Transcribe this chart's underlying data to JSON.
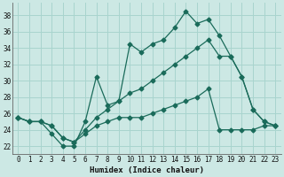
{
  "xlabel": "Humidex (Indice chaleur)",
  "background_color": "#cce8e4",
  "grid_color": "#a8d4ce",
  "line_color": "#1a6b5a",
  "xlim": [
    -0.5,
    23.5
  ],
  "ylim": [
    21.0,
    39.5
  ],
  "yticks": [
    22,
    24,
    26,
    28,
    30,
    32,
    34,
    36,
    38
  ],
  "xticks": [
    0,
    1,
    2,
    3,
    4,
    5,
    6,
    7,
    8,
    9,
    10,
    11,
    12,
    13,
    14,
    15,
    16,
    17,
    18,
    19,
    20,
    21,
    22,
    23
  ],
  "line1_x": [
    0,
    1,
    2,
    3,
    4,
    5,
    6,
    7,
    8,
    9,
    10,
    11,
    12,
    13,
    14,
    15,
    16,
    17,
    18,
    19,
    20,
    21,
    22,
    23
  ],
  "line1_y": [
    25.5,
    25.0,
    25.0,
    23.5,
    22.0,
    22.0,
    25.0,
    30.5,
    27.0,
    27.5,
    34.5,
    33.5,
    34.5,
    35.0,
    36.5,
    38.5,
    37.0,
    37.5,
    35.5,
    33.0,
    30.5,
    26.5,
    25.0,
    24.5
  ],
  "line2_x": [
    0,
    1,
    2,
    3,
    4,
    5,
    6,
    7,
    8,
    9,
    10,
    11,
    12,
    13,
    14,
    15,
    16,
    17,
    18,
    19,
    20,
    21,
    22,
    23
  ],
  "line2_y": [
    25.5,
    25.0,
    25.0,
    24.5,
    23.0,
    22.5,
    24.0,
    25.5,
    26.5,
    27.5,
    28.5,
    29.0,
    30.0,
    31.0,
    32.0,
    33.0,
    34.0,
    35.0,
    33.0,
    33.0,
    30.5,
    26.5,
    25.0,
    24.5
  ],
  "line3_x": [
    0,
    1,
    2,
    3,
    4,
    5,
    6,
    7,
    8,
    9,
    10,
    11,
    12,
    13,
    14,
    15,
    16,
    17,
    18,
    19,
    20,
    21,
    22,
    23
  ],
  "line3_y": [
    25.5,
    25.0,
    25.0,
    24.5,
    23.0,
    22.5,
    23.5,
    24.5,
    25.0,
    25.5,
    25.5,
    25.5,
    26.0,
    26.5,
    27.0,
    27.5,
    28.0,
    29.0,
    24.0,
    24.0,
    24.0,
    24.0,
    24.5,
    24.5
  ]
}
